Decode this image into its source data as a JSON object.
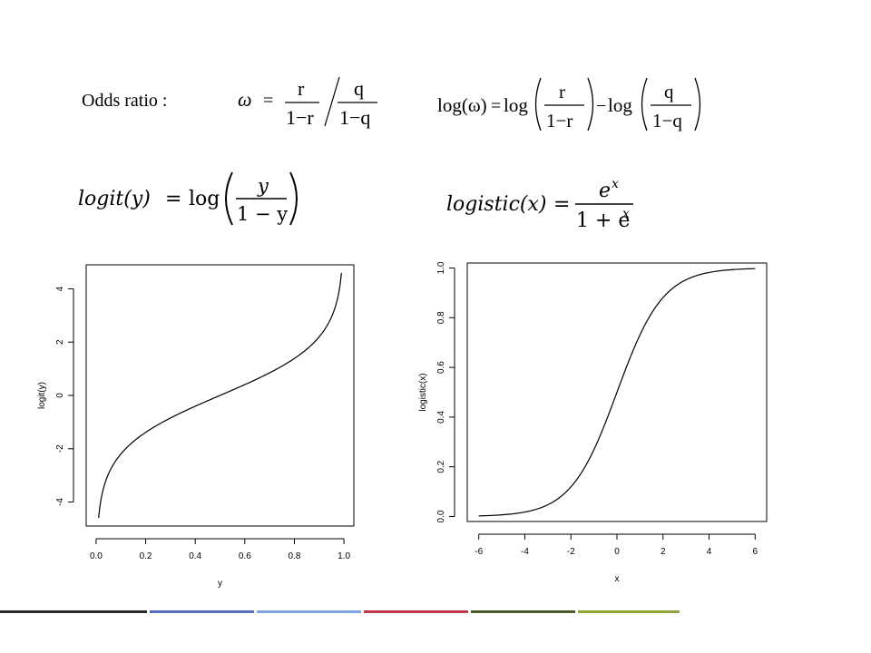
{
  "slide": {
    "odds_label": "Odds ratio :",
    "formulas": {
      "omega": {
        "symbol": "ω",
        "eq": "=",
        "r": "r",
        "one_minus_r": "1−r",
        "q": "q",
        "one_minus_q": "1−q"
      },
      "log_omega": {
        "lhs": "log(ω)",
        "eq": "=",
        "log": "log",
        "minus": "−",
        "r": "r",
        "one_minus_r": "1−r",
        "q": "q",
        "one_minus_q": "1−q"
      },
      "logit": {
        "lhs": "logit(y)",
        "eq": "=",
        "log": "log",
        "num": "y",
        "den": "1 − y"
      },
      "logistic": {
        "lhs": "logistic(x)",
        "eq": "=",
        "num": "e",
        "num_exp": "x",
        "den": "1 + e",
        "den_exp": "x"
      }
    },
    "bottom_bar_colors": [
      "#2b2b2b",
      "#5a6bbf",
      "#7fa5e0",
      "#c0394b",
      "#4a5a2a",
      "#8fa63a"
    ]
  },
  "chart_data": [
    {
      "type": "line",
      "title": "",
      "xlabel": "y",
      "ylabel": "logit(y)",
      "xlim": [
        -0.04,
        1.04
      ],
      "ylim": [
        -4.9,
        4.9
      ],
      "xticks": [
        "0.0",
        "0.2",
        "0.4",
        "0.6",
        "0.8",
        "1.0"
      ],
      "yticks": [
        "-4",
        "-2",
        "0",
        "2",
        "4"
      ],
      "function": "log(y/(1-y))",
      "series": [
        {
          "x": [
            0.01,
            0.02,
            0.05,
            0.1,
            0.15,
            0.2,
            0.3,
            0.4,
            0.5,
            0.6,
            0.7,
            0.8,
            0.85,
            0.9,
            0.95,
            0.98,
            0.99
          ],
          "values": [
            -4.6,
            -3.89,
            -2.94,
            -2.2,
            -1.73,
            -1.39,
            -0.85,
            -0.41,
            0.0,
            0.41,
            0.85,
            1.39,
            1.73,
            2.2,
            2.94,
            3.89,
            4.6
          ]
        }
      ],
      "grid": false
    },
    {
      "type": "line",
      "title": "",
      "xlabel": "x",
      "ylabel": "logistic(x)",
      "xlim": [
        -6.5,
        6.5
      ],
      "ylim": [
        -0.02,
        1.02
      ],
      "xticks": [
        "-6",
        "-4",
        "-2",
        "0",
        "2",
        "4",
        "6"
      ],
      "yticks": [
        "0.0",
        "0.2",
        "0.4",
        "0.6",
        "0.8",
        "1.0"
      ],
      "function": "exp(x)/(1+exp(x))",
      "series": [
        {
          "x": [
            -6,
            -5,
            -4,
            -3,
            -2,
            -1,
            0,
            1,
            2,
            3,
            4,
            5,
            6
          ],
          "values": [
            0.0025,
            0.0067,
            0.018,
            0.047,
            0.119,
            0.269,
            0.5,
            0.731,
            0.881,
            0.953,
            0.982,
            0.993,
            0.9975
          ]
        }
      ],
      "grid": false
    }
  ]
}
